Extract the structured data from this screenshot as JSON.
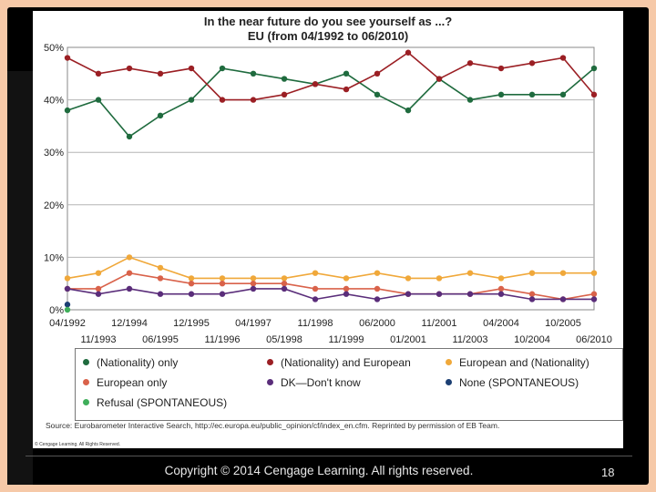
{
  "chart_data": {
    "type": "line",
    "title": "In the near future do you see yourself as ...?",
    "subtitle": "EU (from 04/1992 to 06/2010)",
    "ylim": [
      0,
      50
    ],
    "ytick_labels": [
      "0%",
      "10%",
      "20%",
      "30%",
      "40%",
      "50%"
    ],
    "xtick_labels_top": [
      "04/1992",
      "12/1994",
      "12/1995",
      "04/1997",
      "11/1998",
      "06/2000",
      "11/2001",
      "04/2004",
      "10/2005"
    ],
    "xtick_labels_bottom": [
      "11/1993",
      "06/1995",
      "11/1996",
      "05/1998",
      "11/1999",
      "01/2001",
      "11/2003",
      "10/2004",
      "06/2010"
    ],
    "grid": "horizontal",
    "series": [
      {
        "name": "(Nationality) only",
        "color": "#1f6b3e",
        "values": [
          38,
          40,
          33,
          37,
          40,
          46,
          45,
          44,
          43,
          45,
          41,
          38,
          44,
          40,
          41,
          41,
          41,
          46
        ]
      },
      {
        "name": "(Nationality) and European",
        "color": "#9b1f24",
        "values": [
          48,
          45,
          46,
          45,
          46,
          40,
          40,
          41,
          43,
          42,
          45,
          49,
          44,
          47,
          46,
          47,
          48,
          41
        ]
      },
      {
        "name": "European and (Nationality)",
        "color": "#f0a83a",
        "values": [
          6,
          7,
          10,
          8,
          6,
          6,
          6,
          6,
          7,
          6,
          7,
          6,
          6,
          7,
          6,
          7,
          7,
          7
        ]
      },
      {
        "name": "European only",
        "color": "#d9624a",
        "values": [
          4,
          4,
          7,
          6,
          5,
          5,
          5,
          5,
          4,
          4,
          4,
          3,
          3,
          3,
          4,
          3,
          2,
          3
        ]
      },
      {
        "name": "DK—Don't know",
        "color": "#5a2d7a",
        "values": [
          4,
          3,
          4,
          3,
          3,
          3,
          4,
          4,
          2,
          3,
          2,
          3,
          3,
          3,
          3,
          2,
          2,
          2
        ]
      },
      {
        "name": "None (SPONTANEOUS)",
        "color": "#1c3f73",
        "values": [
          1,
          null,
          null,
          null,
          null,
          null,
          null,
          null,
          null,
          null,
          null,
          null,
          null,
          null,
          null,
          null,
          null,
          null
        ]
      },
      {
        "name": "Refusal (SPONTANEOUS)",
        "color": "#3fae5a",
        "values": [
          0,
          null,
          null,
          null,
          null,
          null,
          null,
          null,
          null,
          null,
          null,
          null,
          null,
          null,
          null,
          null,
          null,
          null
        ]
      }
    ],
    "legend": "bottom",
    "source": "Source: Eurobarometer Interactive Search, http://ec.europa.eu/public_opinion/cf/index_en.cfm. Reprinted by permission of EB Team.",
    "credit": "© Cengage Learning. All Rights Reserved."
  },
  "footer": {
    "copyright": "Copyright ©  2014 Cengage Learning. All rights reserved.",
    "slide_number": "18"
  }
}
